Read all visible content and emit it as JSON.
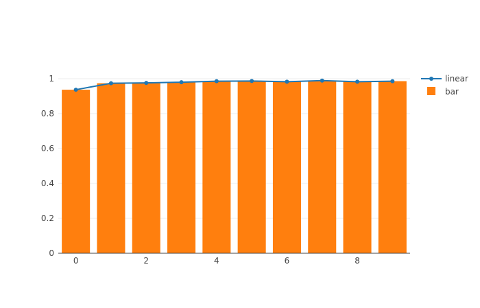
{
  "chart_data": {
    "type": "bar",
    "x": [
      0,
      1,
      2,
      3,
      4,
      5,
      6,
      7,
      8,
      9
    ],
    "xlim": [
      -0.5,
      9.5
    ],
    "ylim": [
      0,
      1.0
    ],
    "x_ticks": [
      0,
      2,
      4,
      6,
      8
    ],
    "y_ticks": [
      0,
      0.2,
      0.4,
      0.6,
      0.8,
      1
    ],
    "x_tick_labels": [
      "0",
      "2",
      "4",
      "6",
      "8"
    ],
    "y_tick_labels": [
      "0",
      "0.2",
      "0.4",
      "0.6",
      "0.8",
      "1"
    ],
    "grid": true,
    "legend_position": "top-right",
    "series": [
      {
        "name": "linear",
        "type": "line+markers",
        "color": "#1f77b4",
        "values": [
          0.937,
          0.974,
          0.976,
          0.98,
          0.986,
          0.987,
          0.983,
          0.989,
          0.983,
          0.986
        ]
      },
      {
        "name": "bar",
        "type": "bar",
        "color": "#ff7f0e",
        "values": [
          0.937,
          0.974,
          0.976,
          0.98,
          0.986,
          0.987,
          0.983,
          0.989,
          0.983,
          0.986
        ]
      }
    ]
  }
}
